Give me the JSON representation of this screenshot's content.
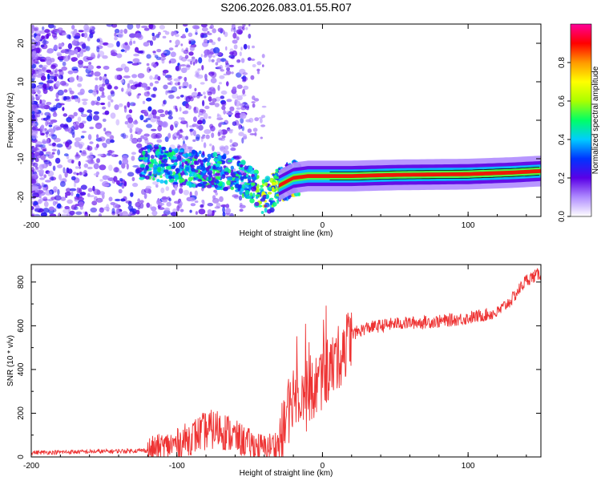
{
  "title": "S206.2026.083.01.55.R07",
  "chart_data": [
    {
      "type": "heatmap",
      "xlabel": "Height of straight line (km)",
      "ylabel": "Frequency (Hz)",
      "xlim": [
        -200,
        150
      ],
      "ylim": [
        -25,
        25
      ],
      "xticks": [
        -200,
        -100,
        0,
        100
      ],
      "yticks": [
        -20,
        -10,
        0,
        10,
        20
      ],
      "colorbar": {
        "label": "Normalized spectral amplitude",
        "range": [
          0.0,
          1.0
        ],
        "ticks": [
          0.0,
          0.2,
          0.4,
          0.6,
          0.8
        ],
        "tick_labels": [
          "0.0",
          "0.2",
          "0.4",
          "0.6",
          "0.8"
        ],
        "colors": [
          "#ffffff",
          "#b08cff",
          "#5a00e6",
          "#0033ff",
          "#00ccff",
          "#00ff66",
          "#aaff00",
          "#ffff00",
          "#ff9900",
          "#ff0000",
          "#ff0099"
        ]
      },
      "ridge": {
        "x": [
          -120,
          -100,
          -80,
          -60,
          -50,
          -40,
          -35,
          -30,
          -20,
          -10,
          0,
          20,
          50,
          100,
          130,
          150
        ],
        "freq": [
          -11,
          -12,
          -13,
          -14,
          -16,
          -20,
          -19,
          -17,
          -15,
          -14.5,
          -14.5,
          -14.5,
          -14.2,
          -14,
          -13.6,
          -13.2
        ]
      }
    },
    {
      "type": "line",
      "xlabel": "Height of straight line (km)",
      "ylabel": "SNR (10 * v/v)",
      "xlim": [
        -200,
        150
      ],
      "ylim": [
        0,
        880
      ],
      "xticks": [
        -200,
        -100,
        0,
        100
      ],
      "yticks": [
        0,
        200,
        400,
        600,
        800
      ],
      "series": [
        {
          "name": "SNR",
          "color": "#ee3333",
          "trend_x": [
            -200,
            -150,
            -120,
            -100,
            -80,
            -70,
            -60,
            -50,
            -40,
            -30,
            -25,
            -20,
            -15,
            -10,
            -5,
            0,
            10,
            20,
            30,
            50,
            80,
            100,
            120,
            130,
            140,
            150
          ],
          "trend_y": [
            20,
            25,
            30,
            60,
            120,
            130,
            90,
            60,
            40,
            60,
            150,
            300,
            300,
            250,
            320,
            360,
            440,
            560,
            590,
            610,
            620,
            635,
            660,
            720,
            810,
            840
          ]
        }
      ]
    }
  ]
}
